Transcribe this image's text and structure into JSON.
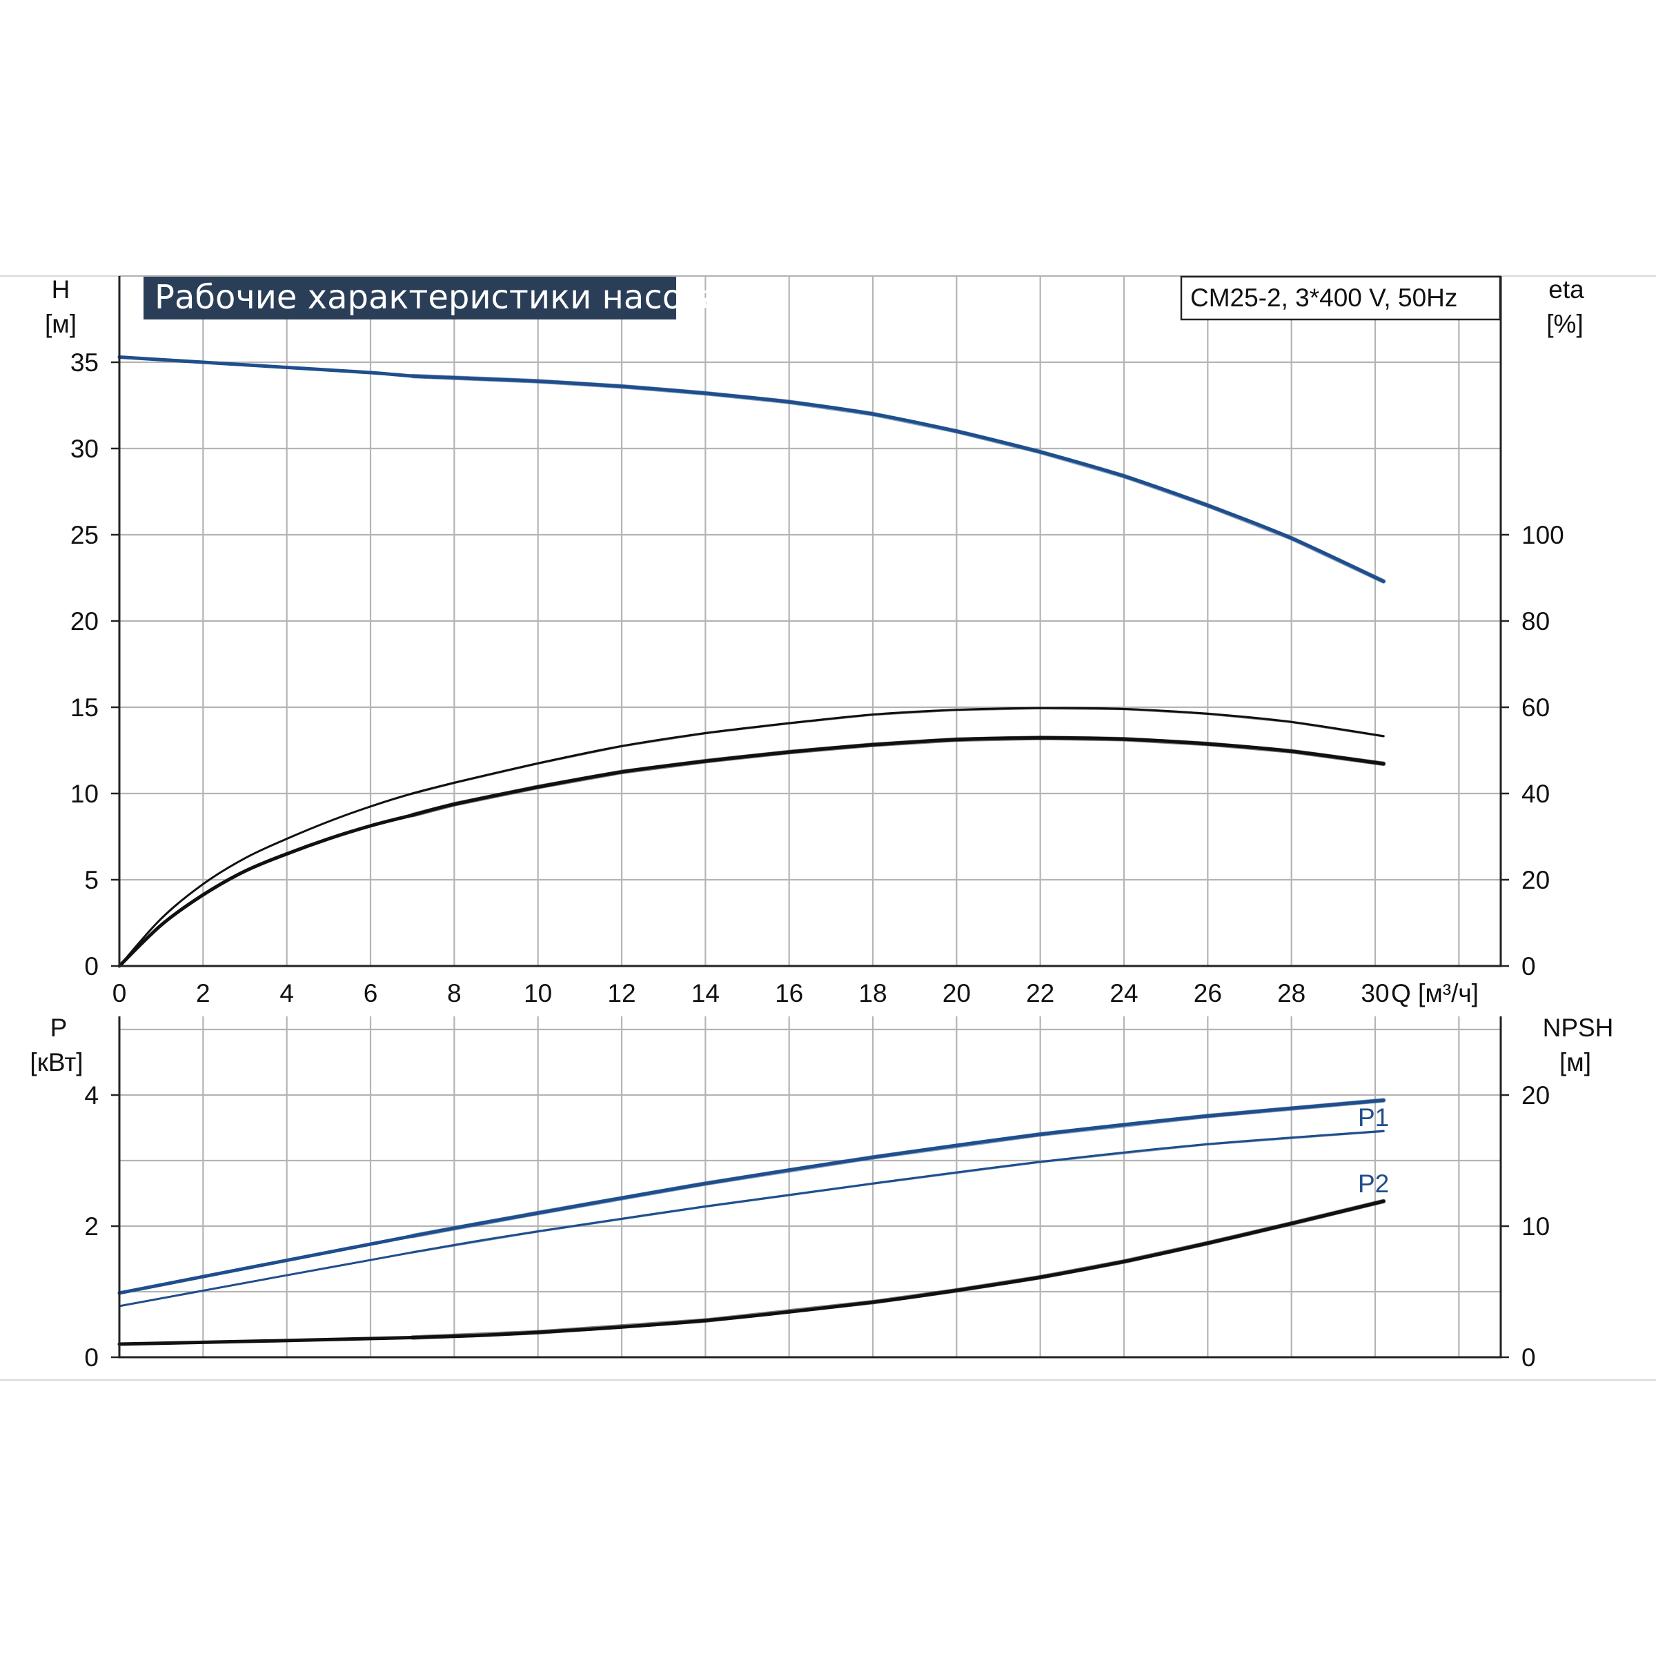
{
  "chart_data": [
    {
      "type": "line",
      "title": "Рабочие характеристики насоса",
      "subtitle": "CM25-2, 3*400 V, 50Hz",
      "xlabel": "Q [м³/ч]",
      "xlim": [
        0,
        33
      ],
      "xticks": [
        "0",
        "2",
        "4",
        "6",
        "8",
        "10",
        "12",
        "14",
        "16",
        "18",
        "20",
        "22",
        "24",
        "26",
        "28",
        "30"
      ],
      "ylabel": [
        "H",
        "[м]"
      ],
      "ylim": [
        0,
        40
      ],
      "yticks": [
        "0",
        "5",
        "10",
        "15",
        "20",
        "25",
        "30",
        "35"
      ],
      "y2label": [
        "eta",
        "[%]"
      ],
      "y2lim": [
        0,
        160
      ],
      "y2ticks": [
        "0",
        "20",
        "40",
        "60",
        "80",
        "100"
      ],
      "grid": true,
      "colors": {
        "blue": "#1f4e8c",
        "black": "#111111"
      },
      "series": [
        {
          "axis": "left",
          "color": "blue",
          "x": [
            0,
            2,
            4,
            6,
            7,
            8,
            10,
            12,
            14,
            16,
            18,
            20,
            22,
            24,
            26,
            28,
            30.2
          ],
          "y": [
            35.3,
            35.0,
            34.7,
            34.4,
            34.2,
            34.1,
            33.9,
            33.6,
            33.2,
            32.7,
            32.0,
            31.0,
            29.8,
            28.4,
            26.7,
            24.8,
            22.3
          ]
        },
        {
          "axis": "right",
          "color": "black",
          "x": [
            0,
            1,
            2,
            3,
            4,
            5,
            6,
            7,
            8,
            10,
            12,
            14,
            16,
            18,
            20,
            22,
            24,
            26,
            28,
            30.2
          ],
          "y": [
            0,
            11,
            19,
            25,
            29.5,
            33.5,
            37,
            40,
            42.5,
            47,
            51,
            54,
            56.3,
            58.3,
            59.4,
            59.8,
            59.6,
            58.5,
            56.6,
            53.3
          ]
        },
        {
          "axis": "right",
          "color": "black",
          "x": [
            0,
            1,
            2,
            3,
            4,
            5,
            6,
            7,
            8,
            10,
            12,
            14,
            16,
            18,
            20,
            22,
            24,
            26,
            28,
            30.2
          ],
          "y": [
            0,
            9.5,
            16.5,
            22,
            26,
            29.5,
            32.5,
            35,
            37.5,
            41.5,
            45,
            47.5,
            49.6,
            51.3,
            52.5,
            52.9,
            52.6,
            51.5,
            49.8,
            46.9
          ]
        }
      ]
    },
    {
      "type": "line",
      "xlim": [
        0,
        33
      ],
      "ylabel": [
        "P",
        "[кВт]"
      ],
      "ylim": [
        0,
        5.2
      ],
      "yticks": [
        "0",
        "2",
        "4"
      ],
      "y2label": [
        "NPSH",
        "[м]"
      ],
      "y2lim": [
        0,
        26
      ],
      "y2ticks": [
        "0",
        "10",
        "20"
      ],
      "grid": true,
      "series": [
        {
          "name": "P1",
          "axis": "left",
          "color": "blue",
          "x": [
            0,
            7,
            10,
            14,
            18,
            22,
            26,
            30.2
          ],
          "y": [
            0.98,
            1.85,
            2.2,
            2.65,
            3.05,
            3.4,
            3.68,
            3.92
          ]
        },
        {
          "name": "P2",
          "axis": "left",
          "color": "blue",
          "x": [
            0,
            7,
            10,
            14,
            18,
            22,
            26,
            30.2
          ],
          "y": [
            0.78,
            1.6,
            1.92,
            2.3,
            2.65,
            2.98,
            3.25,
            3.45
          ]
        },
        {
          "axis": "right",
          "color": "black",
          "x": [
            0,
            7,
            10,
            14,
            18,
            20,
            22,
            24,
            26,
            28,
            30.2
          ],
          "y": [
            1.0,
            1.5,
            1.9,
            2.8,
            4.2,
            5.1,
            6.1,
            7.3,
            8.7,
            10.2,
            11.9
          ]
        }
      ]
    }
  ]
}
